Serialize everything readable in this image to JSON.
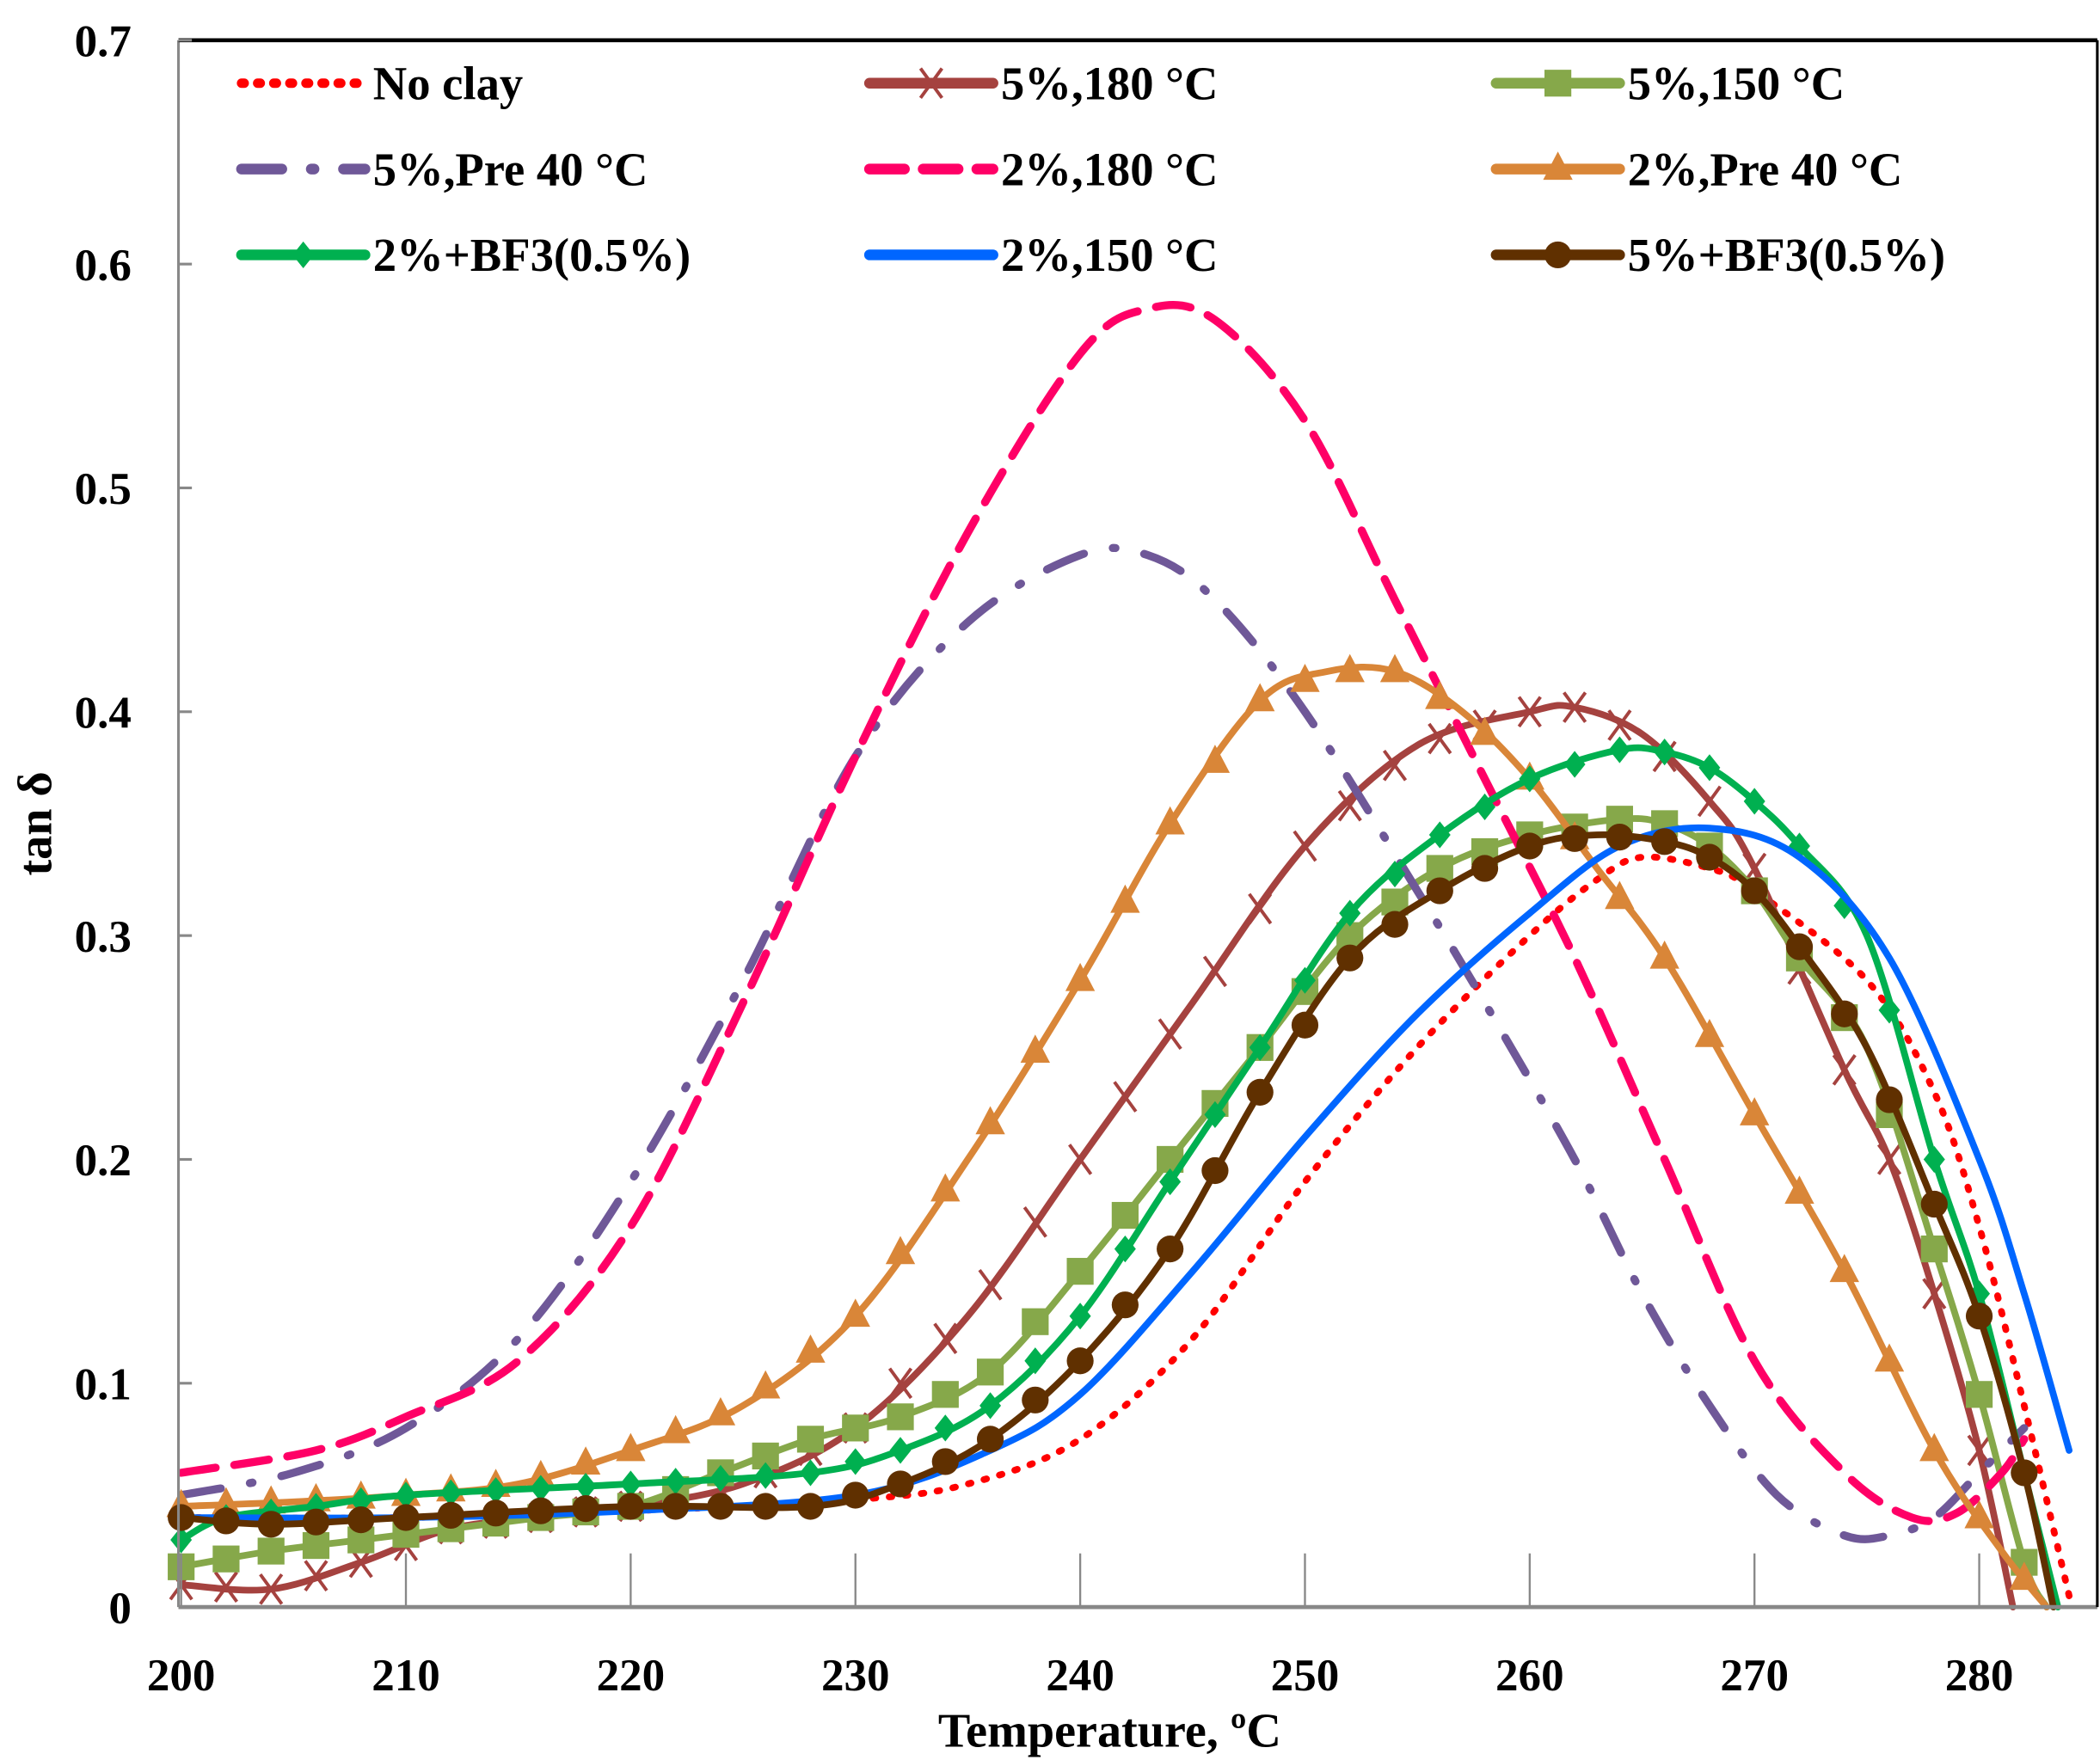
{
  "chart_data": {
    "type": "line",
    "title": "",
    "xlabel": "Temperature, ºC",
    "ylabel": "tan δ",
    "xlim": [
      200,
      285
    ],
    "ylim": [
      0,
      0.7
    ],
    "xticks": [
      200,
      210,
      220,
      230,
      240,
      250,
      260,
      270,
      280
    ],
    "xtick_labels": [
      "200",
      "210",
      "220",
      "230",
      "240",
      "250",
      "260",
      "270",
      "280"
    ],
    "yticks": [
      0,
      0.1,
      0.2,
      0.3,
      0.4,
      0.5,
      0.6,
      0.7
    ],
    "ytick_labels": [
      "0",
      "0.1",
      "0.2",
      "0.3",
      "0.4",
      "0.5",
      "0.6",
      "0.7"
    ],
    "grid": "vertical ticks only",
    "legend_placement": "top (3 columns)",
    "series": [
      {
        "name": "No clay",
        "color": "#ff0000",
        "style": "dotted",
        "marker": "none",
        "x": [
          200,
          210,
          220,
          230,
          235,
          240,
          245,
          250,
          255,
          260,
          263,
          265,
          268,
          270,
          275,
          278,
          280,
          282,
          284
        ],
        "y": [
          0.04,
          0.04,
          0.043,
          0.048,
          0.055,
          0.075,
          0.12,
          0.19,
          0.25,
          0.3,
          0.325,
          0.335,
          0.33,
          0.32,
          0.28,
          0.23,
          0.17,
          0.09,
          0.005
        ]
      },
      {
        "name": "5%,180 °C",
        "color": "#a5423f",
        "style": "solid",
        "marker": "x",
        "x": [
          200,
          204,
          208,
          212,
          216,
          220,
          225,
          230,
          235,
          240,
          245,
          250,
          255,
          260,
          262,
          265,
          268,
          270,
          274,
          276,
          278,
          280,
          281.5
        ],
        "y": [
          0.01,
          0.008,
          0.02,
          0.035,
          0.04,
          0.045,
          0.055,
          0.08,
          0.13,
          0.2,
          0.27,
          0.34,
          0.385,
          0.4,
          0.402,
          0.39,
          0.36,
          0.33,
          0.24,
          0.2,
          0.14,
          0.07,
          0.0
        ]
      },
      {
        "name": "5%,150 °C",
        "color": "#86a84a",
        "style": "solid",
        "marker": "square",
        "x": [
          200,
          204,
          208,
          212,
          216,
          220,
          224,
          228,
          232,
          236,
          240,
          244,
          248,
          252,
          256,
          260,
          264,
          266,
          268,
          270,
          272,
          275,
          278,
          280,
          282,
          283
        ],
        "y": [
          0.018,
          0.025,
          0.03,
          0.035,
          0.04,
          0.045,
          0.06,
          0.075,
          0.085,
          0.105,
          0.15,
          0.2,
          0.25,
          0.3,
          0.33,
          0.345,
          0.352,
          0.35,
          0.34,
          0.32,
          0.29,
          0.25,
          0.16,
          0.095,
          0.02,
          0.0
        ]
      },
      {
        "name": "5%,Pre 40 °C",
        "color": "#6f5898",
        "style": "dashdot",
        "marker": "none",
        "x": [
          200,
          205,
          210,
          215,
          220,
          225,
          230,
          235,
          240,
          243,
          246,
          250,
          255,
          258,
          262,
          265,
          268,
          271,
          274,
          276,
          278,
          280,
          282
        ],
        "y": [
          0.05,
          0.06,
          0.08,
          0.12,
          0.19,
          0.28,
          0.38,
          0.44,
          0.47,
          0.47,
          0.45,
          0.4,
          0.32,
          0.27,
          0.2,
          0.14,
          0.09,
          0.05,
          0.032,
          0.032,
          0.04,
          0.06,
          0.08
        ]
      },
      {
        "name": "2%,180 °C",
        "color": "#ff0066",
        "style": "dashed",
        "marker": "none",
        "x": [
          200,
          206,
          210,
          215,
          220,
          225,
          230,
          235,
          240,
          243,
          246,
          250,
          254,
          258,
          262,
          266,
          270,
          274,
          277,
          279,
          281,
          282
        ],
        "y": [
          0.06,
          0.07,
          0.085,
          0.11,
          0.17,
          0.27,
          0.38,
          0.48,
          0.56,
          0.58,
          0.575,
          0.53,
          0.45,
          0.37,
          0.29,
          0.2,
          0.11,
          0.06,
          0.04,
          0.042,
          0.06,
          0.075
        ]
      },
      {
        "name": "2%,Pre 40 °C",
        "color": "#d98638",
        "style": "solid",
        "marker": "triangle",
        "x": [
          200,
          205,
          210,
          215,
          220,
          225,
          230,
          235,
          240,
          244,
          248,
          251,
          254,
          257,
          260,
          263,
          266,
          270,
          274,
          278,
          281,
          283
        ],
        "y": [
          0.045,
          0.047,
          0.05,
          0.055,
          0.07,
          0.09,
          0.13,
          0.2,
          0.28,
          0.35,
          0.405,
          0.418,
          0.418,
          0.4,
          0.37,
          0.33,
          0.29,
          0.22,
          0.15,
          0.07,
          0.025,
          0.0
        ]
      },
      {
        "name": "2%+BF3(0.5%)",
        "color": "#00b050",
        "style": "solid",
        "marker": "diamond",
        "x": [
          200,
          202,
          206,
          210,
          220,
          228,
          232,
          236,
          240,
          244,
          248,
          252,
          256,
          260,
          264,
          266,
          268,
          270,
          272,
          275,
          278,
          280,
          282,
          283.5
        ],
        "y": [
          0.03,
          0.04,
          0.045,
          0.05,
          0.055,
          0.06,
          0.07,
          0.09,
          0.13,
          0.19,
          0.25,
          0.31,
          0.345,
          0.37,
          0.383,
          0.382,
          0.375,
          0.36,
          0.34,
          0.3,
          0.2,
          0.14,
          0.06,
          0.0
        ]
      },
      {
        "name": "2%,150 °C",
        "color": "#0066ff",
        "style": "solid",
        "marker": "none",
        "x": [
          200,
          210,
          220,
          230,
          236,
          240,
          245,
          250,
          255,
          260,
          264,
          268,
          272,
          276,
          280,
          282,
          284
        ],
        "y": [
          0.04,
          0.04,
          0.043,
          0.05,
          0.07,
          0.095,
          0.15,
          0.21,
          0.265,
          0.31,
          0.34,
          0.348,
          0.335,
          0.29,
          0.2,
          0.14,
          0.07
        ]
      },
      {
        "name": "5%+BF3(0.5%)",
        "color": "#603000",
        "style": "solid",
        "marker": "circle",
        "x": [
          200,
          204,
          210,
          220,
          228,
          232,
          236,
          240,
          244,
          248,
          252,
          256,
          260,
          263,
          266,
          268,
          270,
          272,
          275,
          278,
          280,
          282,
          283.3
        ],
        "y": [
          0.04,
          0.037,
          0.04,
          0.045,
          0.045,
          0.055,
          0.075,
          0.11,
          0.16,
          0.23,
          0.29,
          0.32,
          0.34,
          0.345,
          0.342,
          0.335,
          0.32,
          0.295,
          0.25,
          0.18,
          0.13,
          0.06,
          0.0
        ]
      }
    ]
  }
}
